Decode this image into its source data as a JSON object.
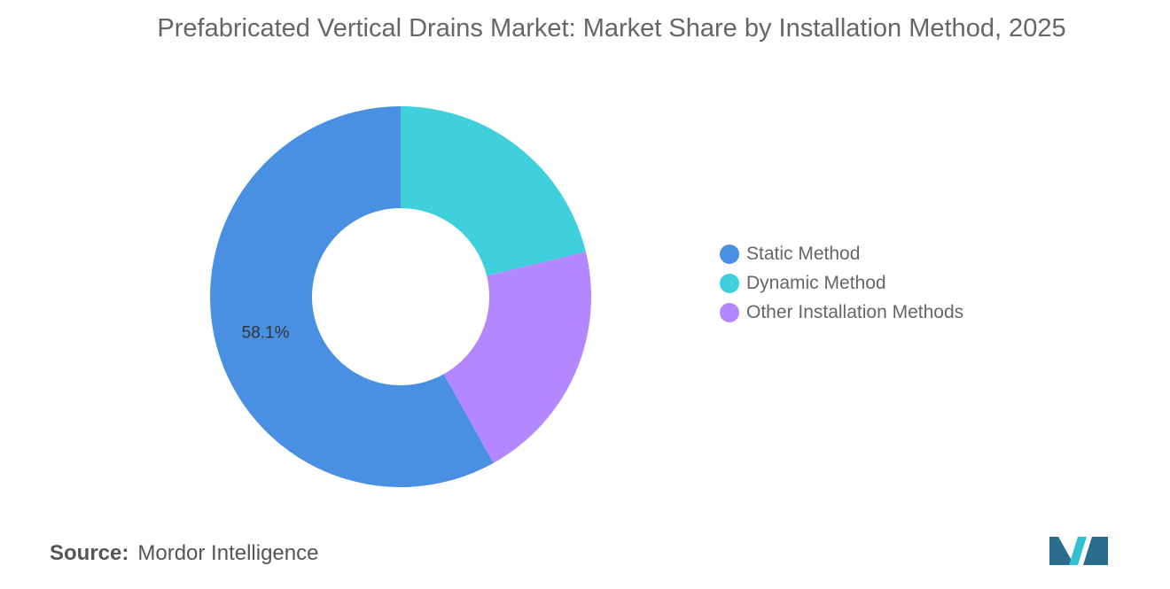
{
  "chart_data": {
    "type": "pie",
    "donut": true,
    "title": "Prefabricated Vertical Drains Market: Market Share by Installation Method, 2025",
    "categories": [
      "Static Method",
      "Dynamic Method",
      "Other Installation Methods"
    ],
    "values": [
      58.1,
      21.2,
      20.7
    ],
    "data_labels": [
      "58.1%"
    ],
    "colors": [
      "#4a90e2",
      "#3fd0db",
      "#b388ff"
    ],
    "legend_position": "right"
  },
  "source": {
    "label": "Source:",
    "text": "Mordor Intelligence"
  },
  "logo": {
    "icon": "mordor-intelligence-logo",
    "colors": [
      "#2c6d8f",
      "#33c1cf"
    ]
  }
}
